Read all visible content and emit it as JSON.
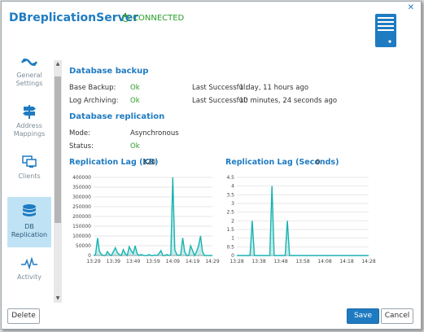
{
  "header": {
    "title": "DBreplicationServer",
    "status": "CONNECTED",
    "status_color": "#2a9d2a"
  },
  "sidebar": {
    "items": [
      {
        "label": "General Settings",
        "icon": "settings-icon"
      },
      {
        "label": "Address Mappings",
        "icon": "signpost-icon"
      },
      {
        "label": "Clients",
        "icon": "clients-icon"
      },
      {
        "label": "DB Replication",
        "icon": "database-icon",
        "active": true
      },
      {
        "label": "Activity",
        "icon": "activity-icon"
      }
    ]
  },
  "backup": {
    "title": "Database backup",
    "base_backup_label": "Base Backup:",
    "base_backup_value": "Ok",
    "base_last_label": "Last Successful:",
    "base_last_value": "1 day, 11 hours ago",
    "log_label": "Log Archiving:",
    "log_value": "Ok",
    "log_last_label": "Last Successful:",
    "log_last_value": "10 minutes, 24 seconds ago"
  },
  "replication": {
    "title": "Database replication",
    "mode_label": "Mode:",
    "mode_value": "Asynchronous",
    "status_label": "Status:",
    "status_value": "Ok"
  },
  "chart_data": [
    {
      "type": "area",
      "title": "Replication Lag (KB)",
      "current": "320",
      "ylim": [
        0,
        400000
      ],
      "yticks": [
        "400000",
        "350000",
        "300000",
        "250000",
        "200000",
        "150000",
        "100000",
        "50000",
        "0"
      ],
      "xticks": [
        "13:29",
        "13:39",
        "13:49",
        "13:59",
        "14:09",
        "14:19",
        "14:29"
      ],
      "xlim": [
        0,
        60
      ],
      "x": [
        0,
        1,
        2,
        3,
        4,
        5,
        6,
        7,
        8,
        9,
        10,
        11,
        12,
        13,
        14,
        15,
        16,
        17,
        18,
        19,
        20,
        21,
        22,
        23,
        24,
        25,
        26,
        27,
        28,
        29,
        30,
        31,
        32,
        33,
        34,
        35,
        36,
        37,
        38,
        39,
        40,
        41,
        42,
        43,
        44,
        45,
        46,
        47,
        48,
        49,
        50,
        51,
        52,
        53,
        54,
        55,
        56,
        57,
        58,
        59,
        60
      ],
      "values": [
        0,
        5000,
        90000,
        20000,
        5000,
        0,
        0,
        20000,
        5000,
        0,
        20000,
        40000,
        15000,
        5000,
        0,
        30000,
        10000,
        0,
        45000,
        25000,
        10000,
        50000,
        10000,
        0,
        5000,
        2000,
        0,
        0,
        5000,
        0,
        0,
        3000,
        0,
        10000,
        25000,
        0,
        0,
        5000,
        0,
        5000,
        400000,
        30000,
        5000,
        0,
        5000,
        90000,
        20000,
        0,
        0,
        50000,
        25000,
        0,
        20000,
        50000,
        100000,
        20000,
        0,
        0,
        0,
        0,
        0
      ],
      "color": "#19b3b0"
    },
    {
      "type": "area",
      "title": "Replication Lag (Seconds)",
      "current": "0",
      "ylim": [
        0,
        4.5
      ],
      "yticks": [
        "4.5",
        "4",
        "3.5",
        "3",
        "2.5",
        "2",
        "1.5",
        "1",
        "0.5",
        "0"
      ],
      "xticks": [
        "13:28",
        "13:38",
        "13:48",
        "13:58",
        "14:08",
        "14:18",
        "14:28"
      ],
      "xlim": [
        0,
        60
      ],
      "x": [
        0,
        1,
        2,
        3,
        4,
        5,
        6,
        7,
        8,
        9,
        10,
        11,
        12,
        13,
        14,
        15,
        16,
        17,
        18,
        19,
        20,
        21,
        22,
        23,
        24,
        25,
        26,
        27,
        28,
        29,
        30,
        31,
        32,
        33,
        34,
        35,
        36,
        37,
        38,
        39,
        40,
        41,
        42,
        43,
        44,
        45,
        46,
        47,
        48,
        49,
        50,
        51,
        52,
        53,
        54,
        55,
        56,
        57,
        58,
        59,
        60
      ],
      "values": [
        0,
        0,
        0,
        0,
        0,
        0,
        0,
        2,
        0,
        0,
        0,
        0,
        0,
        0,
        0,
        0,
        4,
        0,
        0,
        0,
        0,
        0,
        0,
        2,
        0,
        0,
        0,
        0,
        0,
        0,
        0,
        0,
        0,
        0,
        0,
        0,
        0,
        0,
        0,
        0,
        0,
        0,
        0,
        0,
        0,
        0,
        0,
        0,
        0,
        0,
        0,
        0,
        0,
        0,
        0,
        0,
        0,
        0,
        0,
        0,
        0
      ],
      "color": "#19b3b0"
    }
  ],
  "footer": {
    "delete_label": "Delete",
    "save_label": "Save",
    "cancel_label": "Cancel"
  }
}
